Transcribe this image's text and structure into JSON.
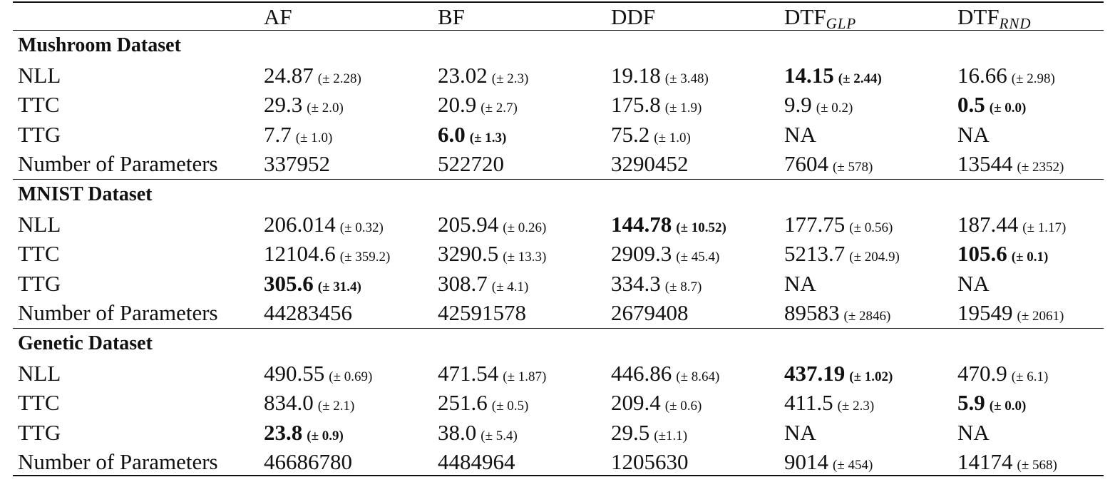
{
  "table": {
    "header": {
      "corner": "",
      "columns": [
        {
          "base": "AF",
          "sub": ""
        },
        {
          "base": "BF",
          "sub": ""
        },
        {
          "base": "DDF",
          "sub": ""
        },
        {
          "base": "DTF",
          "sub": "GLP"
        },
        {
          "base": "DTF",
          "sub": "RND"
        }
      ]
    },
    "sections": [
      {
        "title": "Mushroom Dataset",
        "rows": [
          {
            "label": "NLL",
            "cells": [
              {
                "v": "24.87",
                "sd": "(± 2.28)"
              },
              {
                "v": "23.02",
                "sd": "(± 2.3)"
              },
              {
                "v": "19.18",
                "sd": "(± 3.48)"
              },
              {
                "v": "14.15",
                "sd": "(± 2.44)",
                "bold": true
              },
              {
                "v": "16.66",
                "sd": "(± 2.98)"
              }
            ]
          },
          {
            "label": "TTC",
            "cells": [
              {
                "v": "29.3",
                "sd": "(± 2.0)"
              },
              {
                "v": "20.9",
                "sd": "(± 2.7)"
              },
              {
                "v": "175.8",
                "sd": "(± 1.9)"
              },
              {
                "v": "9.9",
                "sd": "(± 0.2)"
              },
              {
                "v": "0.5",
                "sd": "(± 0.0)",
                "bold": true
              }
            ]
          },
          {
            "label": "TTG",
            "cells": [
              {
                "v": "7.7",
                "sd": "(± 1.0)"
              },
              {
                "v": "6.0",
                "sd": "(± 1.3)",
                "bold": true
              },
              {
                "v": "75.2",
                "sd": "(± 1.0)"
              },
              {
                "v": "NA",
                "sd": ""
              },
              {
                "v": "NA",
                "sd": ""
              }
            ]
          },
          {
            "label": "Number of Parameters",
            "cells": [
              {
                "v": "337952",
                "sd": ""
              },
              {
                "v": "522720",
                "sd": ""
              },
              {
                "v": "3290452",
                "sd": ""
              },
              {
                "v": "7604",
                "sd": "(± 578)"
              },
              {
                "v": "13544",
                "sd": "(± 2352)"
              }
            ]
          }
        ]
      },
      {
        "title": "MNIST Dataset",
        "rows": [
          {
            "label": "NLL",
            "cells": [
              {
                "v": "206.014",
                "sd": "(± 0.32)"
              },
              {
                "v": "205.94",
                "sd": "(± 0.26)"
              },
              {
                "v": "144.78",
                "sd": "(± 10.52)",
                "bold": true
              },
              {
                "v": "177.75",
                "sd": "(± 0.56)"
              },
              {
                "v": "187.44",
                "sd": "(± 1.17)"
              }
            ]
          },
          {
            "label": "TTC",
            "cells": [
              {
                "v": "12104.6",
                "sd": "(± 359.2)"
              },
              {
                "v": "3290.5",
                "sd": "(± 13.3)"
              },
              {
                "v": "2909.3",
                "sd": "(± 45.4)"
              },
              {
                "v": "5213.7",
                "sd": "(± 204.9)"
              },
              {
                "v": "105.6",
                "sd": "(± 0.1)",
                "bold": true
              }
            ]
          },
          {
            "label": "TTG",
            "cells": [
              {
                "v": "305.6",
                "sd": "(± 31.4)",
                "bold": true
              },
              {
                "v": "308.7",
                "sd": "(± 4.1)"
              },
              {
                "v": "334.3",
                "sd": "(± 8.7)"
              },
              {
                "v": "NA",
                "sd": ""
              },
              {
                "v": "NA",
                "sd": ""
              }
            ]
          },
          {
            "label": "Number of Parameters",
            "cells": [
              {
                "v": "44283456",
                "sd": ""
              },
              {
                "v": "42591578",
                "sd": ""
              },
              {
                "v": "2679408",
                "sd": ""
              },
              {
                "v": "89583",
                "sd": "(± 2846)"
              },
              {
                "v": "19549",
                "sd": "(± 2061)"
              }
            ]
          }
        ]
      },
      {
        "title": "Genetic Dataset",
        "rows": [
          {
            "label": "NLL",
            "cells": [
              {
                "v": "490.55",
                "sd": "(± 0.69)"
              },
              {
                "v": "471.54",
                "sd": "(± 1.87)"
              },
              {
                "v": "446.86",
                "sd": "(± 8.64)"
              },
              {
                "v": "437.19",
                "sd": "(± 1.02)",
                "bold": true
              },
              {
                "v": "470.9",
                "sd": "(± 6.1)"
              }
            ]
          },
          {
            "label": "TTC",
            "cells": [
              {
                "v": "834.0",
                "sd": "(± 2.1)"
              },
              {
                "v": "251.6",
                "sd": "(± 0.5)"
              },
              {
                "v": "209.4",
                "sd": "(± 0.6)"
              },
              {
                "v": "411.5",
                "sd": "(± 2.3)"
              },
              {
                "v": "5.9",
                "sd": "(± 0.0)",
                "bold": true
              }
            ]
          },
          {
            "label": "TTG",
            "cells": [
              {
                "v": "23.8",
                "sd": "(± 0.9)",
                "bold": true
              },
              {
                "v": "38.0",
                "sd": "(± 5.4)"
              },
              {
                "v": "29.5",
                "sd": "(±1.1)"
              },
              {
                "v": "NA",
                "sd": ""
              },
              {
                "v": "NA",
                "sd": ""
              }
            ]
          },
          {
            "label": "Number of Parameters",
            "cells": [
              {
                "v": "46686780",
                "sd": ""
              },
              {
                "v": "4484964",
                "sd": ""
              },
              {
                "v": "1205630",
                "sd": ""
              },
              {
                "v": "9014",
                "sd": "(± 454)"
              },
              {
                "v": "14174",
                "sd": "(± 568)"
              }
            ]
          }
        ]
      }
    ]
  }
}
